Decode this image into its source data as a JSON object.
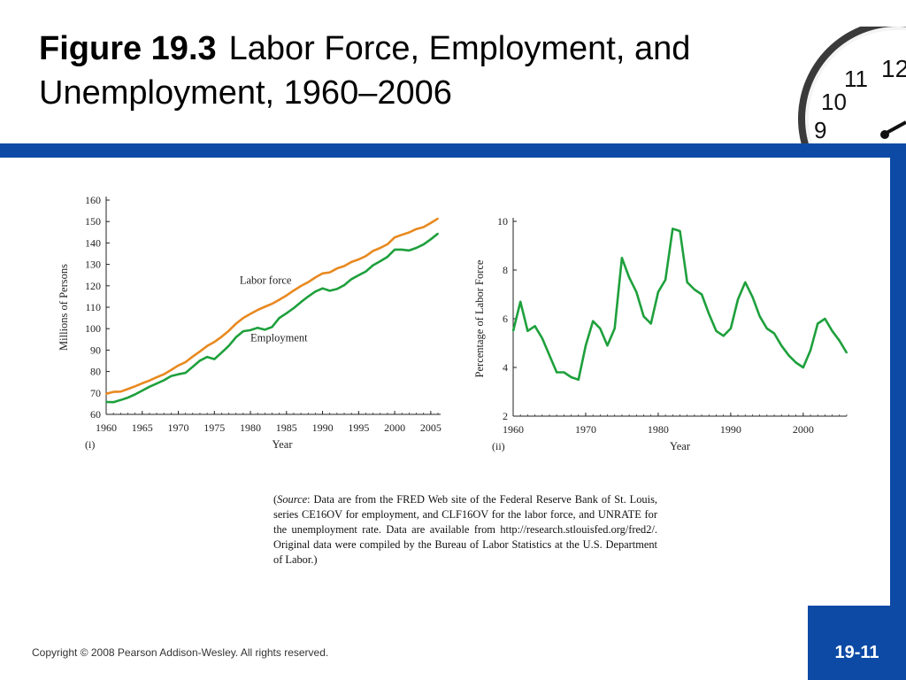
{
  "title": {
    "figure": "Figure 19.3",
    "rest": "Labor Force, Employment, and Unemployment, 1960–2006"
  },
  "colors": {
    "accent_bar": "#0d4aa6",
    "labor_force": "#e8891f",
    "employment": "#1ea03c",
    "unemployment": "#1ea03c"
  },
  "chart_data": [
    {
      "type": "line",
      "panel_label": "(i)",
      "xlabel": "Year",
      "ylabel": "Millions of Persons",
      "xlim": [
        1960,
        2006
      ],
      "ylim": [
        60,
        160
      ],
      "x_ticks": [
        1960,
        1965,
        1970,
        1975,
        1980,
        1985,
        1990,
        1995,
        2000,
        2005
      ],
      "y_ticks": [
        60,
        70,
        80,
        90,
        100,
        110,
        120,
        130,
        140,
        150,
        160
      ],
      "grid": false,
      "x": [
        1960,
        1961,
        1962,
        1963,
        1964,
        1965,
        1966,
        1967,
        1968,
        1969,
        1970,
        1971,
        1972,
        1973,
        1974,
        1975,
        1976,
        1977,
        1978,
        1979,
        1980,
        1981,
        1982,
        1983,
        1984,
        1985,
        1986,
        1987,
        1988,
        1989,
        1990,
        1991,
        1992,
        1993,
        1994,
        1995,
        1996,
        1997,
        1998,
        1999,
        2000,
        2001,
        2002,
        2003,
        2004,
        2005,
        2006
      ],
      "series": [
        {
          "name": "Labor force",
          "color": "#e8891f",
          "values": [
            69.6,
            70.5,
            70.6,
            71.8,
            73.1,
            74.5,
            75.8,
            77.3,
            78.7,
            80.7,
            82.8,
            84.4,
            87.0,
            89.4,
            91.9,
            93.8,
            96.2,
            99.0,
            102.3,
            105.0,
            106.9,
            108.7,
            110.2,
            111.6,
            113.5,
            115.5,
            117.8,
            119.9,
            121.7,
            123.9,
            125.8,
            126.3,
            128.1,
            129.2,
            131.1,
            132.3,
            133.9,
            136.3,
            137.7,
            139.4,
            142.6,
            143.8,
            144.9,
            146.5,
            147.4,
            149.3,
            151.4
          ]
        },
        {
          "name": "Employment",
          "color": "#1ea03c",
          "values": [
            65.8,
            65.7,
            66.7,
            67.8,
            69.3,
            71.1,
            72.9,
            74.4,
            75.9,
            77.9,
            78.7,
            79.4,
            82.2,
            85.1,
            86.8,
            85.8,
            88.8,
            92.0,
            96.0,
            98.8,
            99.3,
            100.4,
            99.5,
            100.8,
            105.0,
            107.2,
            109.6,
            112.4,
            115.0,
            117.3,
            118.8,
            117.7,
            118.5,
            120.3,
            123.1,
            124.9,
            126.7,
            129.6,
            131.5,
            133.5,
            136.9,
            136.9,
            136.5,
            137.7,
            139.3,
            141.7,
            144.4
          ]
        }
      ],
      "annotations": [
        "Labor force",
        "Employment"
      ]
    },
    {
      "type": "line",
      "panel_label": "(ii)",
      "xlabel": "Year",
      "ylabel": "Percentage of Labor Force",
      "xlim": [
        1960,
        2006
      ],
      "ylim": [
        2,
        10
      ],
      "x_ticks": [
        1960,
        1970,
        1980,
        1990,
        2000
      ],
      "y_ticks": [
        2,
        4,
        6,
        8,
        10
      ],
      "grid": false,
      "x": [
        1960,
        1961,
        1962,
        1963,
        1964,
        1965,
        1966,
        1967,
        1968,
        1969,
        1970,
        1971,
        1972,
        1973,
        1974,
        1975,
        1976,
        1977,
        1978,
        1979,
        1980,
        1981,
        1982,
        1983,
        1984,
        1985,
        1986,
        1987,
        1988,
        1989,
        1990,
        1991,
        1992,
        1993,
        1994,
        1995,
        1996,
        1997,
        1998,
        1999,
        2000,
        2001,
        2002,
        2003,
        2004,
        2005,
        2006
      ],
      "series": [
        {
          "name": "",
          "color": "#1ea03c",
          "values": [
            5.5,
            6.7,
            5.5,
            5.7,
            5.2,
            4.5,
            3.8,
            3.8,
            3.6,
            3.5,
            4.9,
            5.9,
            5.6,
            4.9,
            5.6,
            8.5,
            7.7,
            7.1,
            6.1,
            5.8,
            7.1,
            7.6,
            9.7,
            9.6,
            7.5,
            7.2,
            7.0,
            6.2,
            5.5,
            5.3,
            5.6,
            6.8,
            7.5,
            6.9,
            6.1,
            5.6,
            5.4,
            4.9,
            4.5,
            4.2,
            4.0,
            4.7,
            5.8,
            6.0,
            5.5,
            5.1,
            4.6
          ]
        }
      ]
    }
  ],
  "source_note": {
    "open": "(",
    "source_label": "Source",
    "text": ": Data are from the FRED Web site of the Federal Reserve Bank of St. Louis, series CE16OV for employment, and CLF16OV for the labor force, and UNRATE for the unemployment rate. Data are available from http://research.stlouisfed.org/fred2/. Original data were compiled by the Bureau of Labor Statistics at the U.S. Department of Labor.)"
  },
  "clock": {
    "numerals": [
      "12",
      "11",
      "10",
      "9"
    ]
  },
  "footer": {
    "copyright": "Copyright © 2008 Pearson Addison-Wesley. All rights reserved.",
    "page_number": "19-11"
  }
}
